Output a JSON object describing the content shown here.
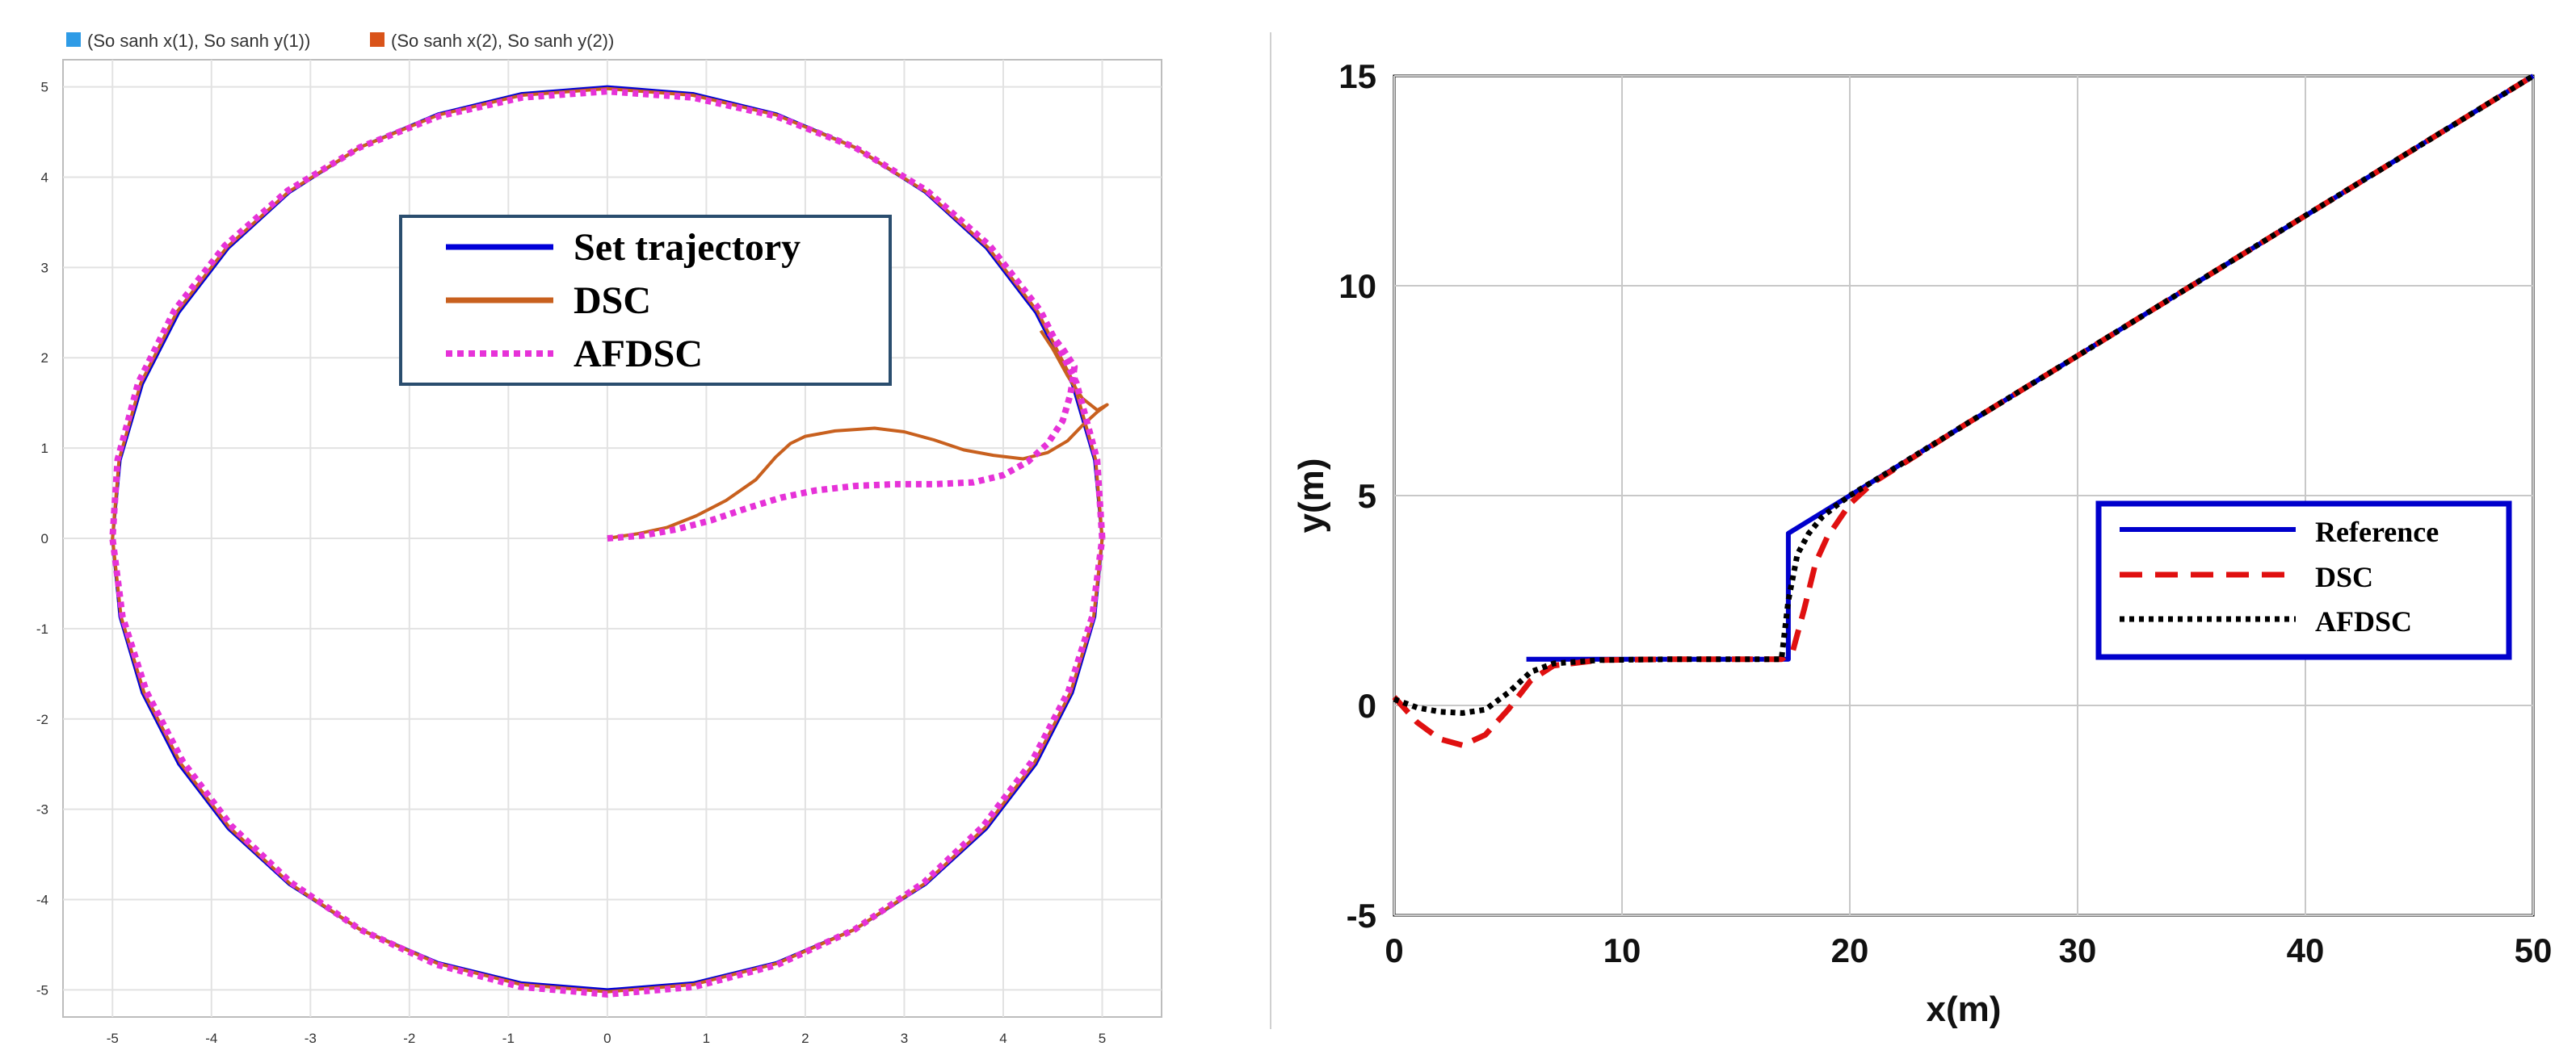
{
  "chart_data": [
    {
      "type": "line",
      "title": "",
      "xlabel": "",
      "ylabel": "",
      "xlim": [
        -5.5,
        5.6
      ],
      "ylim": [
        -5.3,
        5.3
      ],
      "xticks": [
        -5,
        -4,
        -3,
        -2,
        -1,
        0,
        1,
        2,
        3,
        4,
        5
      ],
      "yticks": [
        5,
        4,
        3,
        2,
        1,
        0,
        -1,
        -2,
        -3,
        -4,
        -5
      ],
      "grid": true,
      "top_legend": [
        {
          "label": "(So sanh x(1), So sanh y(1))",
          "color": "#2e9be6"
        },
        {
          "label": "(So sanh x(2), So sanh y(2))",
          "color": "#d95319"
        }
      ],
      "legend_position": "top-center",
      "series": [
        {
          "name": "Set trajectory",
          "color": "#0000d8",
          "style": "solid",
          "circle": {
            "center": [
              0,
              0
            ],
            "radius": 5
          },
          "x": [],
          "y": []
        },
        {
          "name": "DSC",
          "color": "#c8601e",
          "style": "solid",
          "x": [
            0,
            0.3,
            0.6,
            0.9,
            1.2,
            1.5,
            1.7,
            1.85,
            2.0,
            2.3,
            2.7,
            3.0,
            3.3,
            3.6,
            3.9,
            4.2,
            4.45,
            4.65,
            4.8,
            4.95,
            5.05,
            4.95,
            4.8,
            4.65,
            4.5,
            4.38
          ],
          "y": [
            0,
            0.05,
            0.12,
            0.25,
            0.42,
            0.65,
            0.9,
            1.05,
            1.13,
            1.19,
            1.22,
            1.18,
            1.09,
            0.98,
            0.92,
            0.88,
            0.95,
            1.08,
            1.25,
            1.4,
            1.48,
            1.42,
            1.55,
            1.8,
            2.1,
            2.3
          ],
          "circle": {
            "center": [
              0,
              0
            ],
            "radius": 5
          }
        },
        {
          "name": "AFDSC",
          "color": "#e632d8",
          "style": "dotted",
          "x": [
            0,
            0.35,
            0.7,
            1.05,
            1.4,
            1.75,
            2.1,
            2.5,
            2.9,
            3.3,
            3.7,
            4.0,
            4.25,
            4.45,
            4.6,
            4.68,
            4.72,
            4.6,
            4.45
          ],
          "y": [
            0,
            0.03,
            0.1,
            0.2,
            0.33,
            0.45,
            0.53,
            0.58,
            0.6,
            0.6,
            0.62,
            0.7,
            0.85,
            1.05,
            1.3,
            1.6,
            1.9,
            2.1,
            2.3
          ],
          "circle": {
            "center": [
              0,
              0
            ],
            "radius": 5
          }
        }
      ],
      "legend": [
        "Set trajectory",
        "DSC",
        "AFDSC"
      ]
    },
    {
      "type": "line",
      "title": "",
      "xlabel": "x(m)",
      "ylabel": "y(m)",
      "xlim": [
        0,
        50
      ],
      "ylim": [
        -5,
        15
      ],
      "xticks": [
        0,
        10,
        20,
        30,
        40,
        50
      ],
      "yticks": [
        15,
        10,
        5,
        0,
        -5
      ],
      "grid": true,
      "legend_position": "right",
      "series": [
        {
          "name": "Reference",
          "color": "#0000cc",
          "style": "solid",
          "x": [
            5.8,
            17.3,
            17.3,
            20,
            50
          ],
          "y": [
            1.1,
            1.1,
            4.1,
            5,
            15
          ]
        },
        {
          "name": "DSC",
          "color": "#e01010",
          "style": "dashed",
          "x": [
            0,
            1,
            2,
            3,
            4,
            5,
            6,
            7,
            9,
            12,
            15,
            17,
            17.5,
            18,
            18.5,
            19,
            19.5,
            20,
            21,
            25,
            30,
            35,
            40,
            45,
            50
          ],
          "y": [
            0.2,
            -0.4,
            -0.8,
            -0.95,
            -0.7,
            -0.1,
            0.6,
            0.95,
            1.08,
            1.1,
            1.1,
            1.1,
            1.3,
            2.3,
            3.4,
            4.0,
            4.4,
            4.8,
            5.3,
            6.67,
            8.33,
            10,
            11.67,
            13.33,
            15
          ]
        },
        {
          "name": "AFDSC",
          "color": "#000000",
          "style": "dotted",
          "x": [
            0,
            1,
            2,
            3,
            4,
            5,
            6,
            7,
            9,
            12,
            15,
            17,
            17.3,
            17.7,
            18.2,
            18.8,
            19.5,
            20,
            21,
            25,
            30,
            35,
            40,
            45,
            50
          ],
          "y": [
            0.15,
            -0.05,
            -0.15,
            -0.18,
            -0.1,
            0.3,
            0.8,
            1.0,
            1.08,
            1.1,
            1.1,
            1.1,
            2.5,
            3.6,
            4.1,
            4.5,
            4.8,
            5.0,
            5.33,
            6.67,
            8.33,
            10,
            11.67,
            13.33,
            15
          ]
        }
      ],
      "legend": [
        "Reference",
        "DSC",
        "AFDSC"
      ]
    }
  ]
}
